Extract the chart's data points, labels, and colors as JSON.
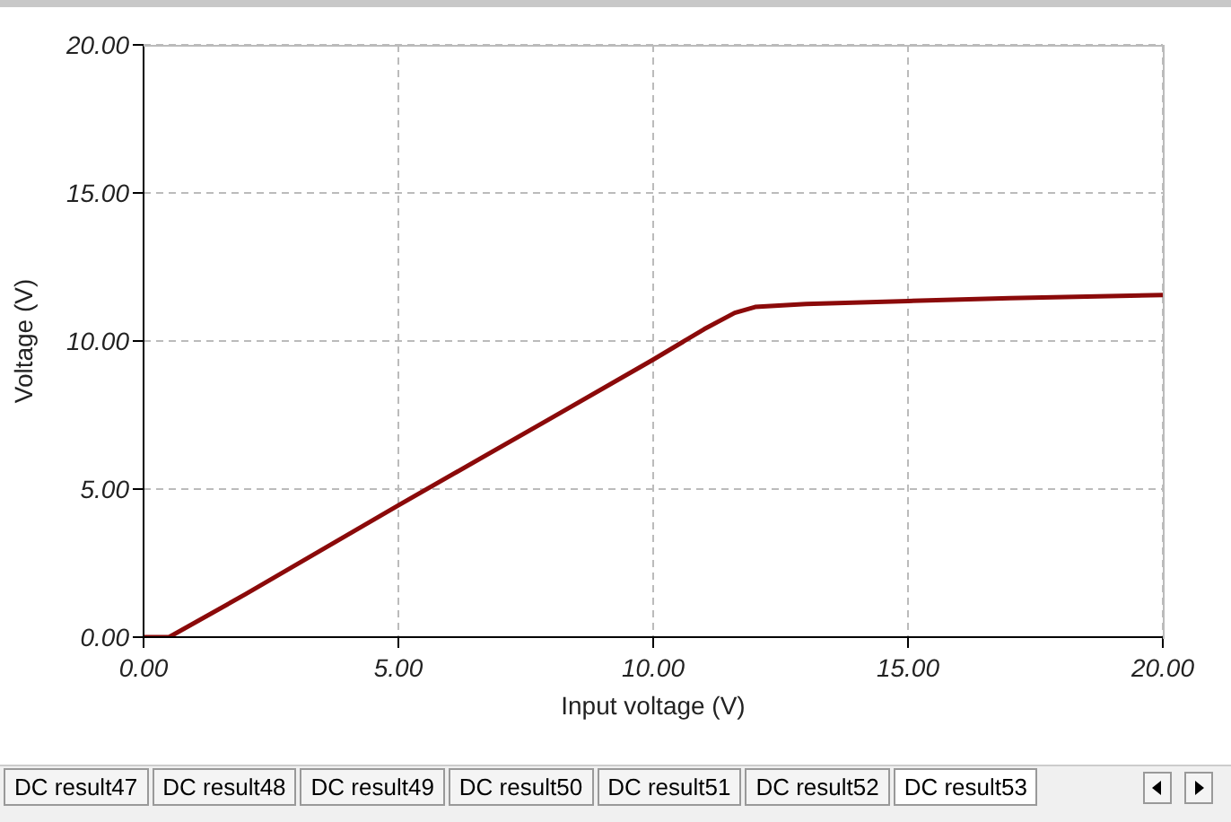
{
  "chart_data": {
    "type": "line",
    "xlabel": "Input voltage (V)",
    "ylabel": "Voltage (V)",
    "x": [
      0,
      0.5,
      2,
      5,
      8,
      10,
      11,
      11.6,
      12,
      13,
      15,
      17,
      20
    ],
    "series": [
      {
        "color": "#8b0a0a",
        "values": [
          0,
          0,
          1.45,
          4.45,
          7.4,
          9.37,
          10.4,
          10.95,
          11.15,
          11.25,
          11.35,
          11.45,
          11.55
        ]
      }
    ],
    "xlim": [
      0,
      20
    ],
    "ylim": [
      0,
      20
    ],
    "xticks": [
      {
        "value": 0,
        "label": "0.00"
      },
      {
        "value": 5,
        "label": "5.00"
      },
      {
        "value": 10,
        "label": "10.00"
      },
      {
        "value": 15,
        "label": "15.00"
      },
      {
        "value": 20,
        "label": "20.00"
      }
    ],
    "yticks": [
      {
        "value": 0,
        "label": "0.00"
      },
      {
        "value": 5,
        "label": "5.00"
      },
      {
        "value": 10,
        "label": "10.00"
      },
      {
        "value": 15,
        "label": "15.00"
      },
      {
        "value": 20,
        "label": "20.00"
      }
    ],
    "grid": true,
    "marker": "none",
    "line_style": "solid",
    "annotations": [
      "DC result47",
      "DC result48",
      "DC result49",
      "DC result50",
      "DC result51",
      "DC result52",
      "DC result53"
    ]
  }
}
